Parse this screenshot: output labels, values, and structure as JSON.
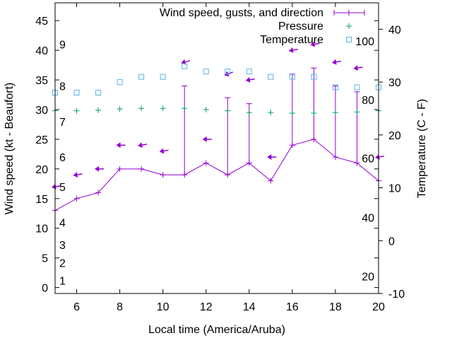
{
  "chart_data": {
    "type": "line",
    "xlabel": "Local time (America/Aruba)",
    "ylabel": "Wind speed (kt - Beaufort)",
    "y2label": "Temperature (C - F)",
    "xlim": [
      5,
      20
    ],
    "ylim": [
      -1,
      48
    ],
    "y2lim": [
      -10,
      45
    ],
    "x_ticks": [
      6,
      8,
      10,
      12,
      14,
      16,
      18,
      20
    ],
    "y_ticks": [
      0,
      5,
      10,
      15,
      20,
      25,
      30,
      35,
      40,
      45
    ],
    "y2_ticks": [
      -10,
      0,
      10,
      20,
      30,
      40
    ],
    "beaufort_labels": [
      {
        "label": "1",
        "kt": 1.2
      },
      {
        "label": "2",
        "kt": 4.2
      },
      {
        "label": "3",
        "kt": 7.2
      },
      {
        "label": "4",
        "kt": 11
      },
      {
        "label": "5",
        "kt": 17
      },
      {
        "label": "6",
        "kt": 22
      },
      {
        "label": "7",
        "kt": 28
      },
      {
        "label": "8",
        "kt": 34
      },
      {
        "label": "9",
        "kt": 41
      }
    ],
    "fahrenheit_labels": [
      {
        "label": "20",
        "c": -6.7
      },
      {
        "label": "40",
        "c": 4.4
      },
      {
        "label": "60",
        "c": 15.6
      },
      {
        "label": "80",
        "c": 26.7
      },
      {
        "label": "100",
        "c": 37.8
      }
    ],
    "legend_position": "top-right",
    "x": [
      5,
      6,
      7,
      8,
      9,
      10,
      11,
      12,
      13,
      14,
      15,
      16,
      17,
      18,
      19,
      20
    ],
    "series": [
      {
        "name": "Wind speed, gusts, and direction",
        "color": "#9400d3",
        "axis": "y",
        "values": [
          13,
          15,
          16,
          20,
          20,
          19,
          19,
          21,
          19,
          21,
          18,
          24,
          25,
          22,
          21,
          18
        ],
        "gusts": [
          null,
          null,
          null,
          null,
          null,
          null,
          34,
          null,
          32,
          31,
          null,
          36,
          37,
          34,
          33,
          null
        ],
        "arrow_level": [
          17,
          19,
          20,
          24,
          24,
          23,
          38,
          25,
          36,
          35,
          22,
          40,
          41,
          38,
          37,
          22
        ],
        "arrow_direction_deg": [
          80,
          80,
          90,
          90,
          80,
          80,
          75,
          90,
          70,
          80,
          90,
          80,
          80,
          80,
          80,
          80
        ]
      },
      {
        "name": "Pressure",
        "color": "#009e73",
        "axis": "y",
        "values": [
          29.8,
          29.8,
          29.9,
          30.1,
          30.2,
          30.2,
          30.2,
          30.0,
          29.8,
          29.5,
          29.5,
          29.4,
          29.4,
          29.5,
          29.6,
          29.8
        ]
      },
      {
        "name": "Temperature",
        "color": "#56b4e9",
        "axis": "y2",
        "values": [
          28,
          28,
          28,
          30,
          31,
          31,
          33,
          32,
          32,
          32,
          31,
          31,
          31,
          29,
          29,
          29
        ]
      }
    ]
  }
}
